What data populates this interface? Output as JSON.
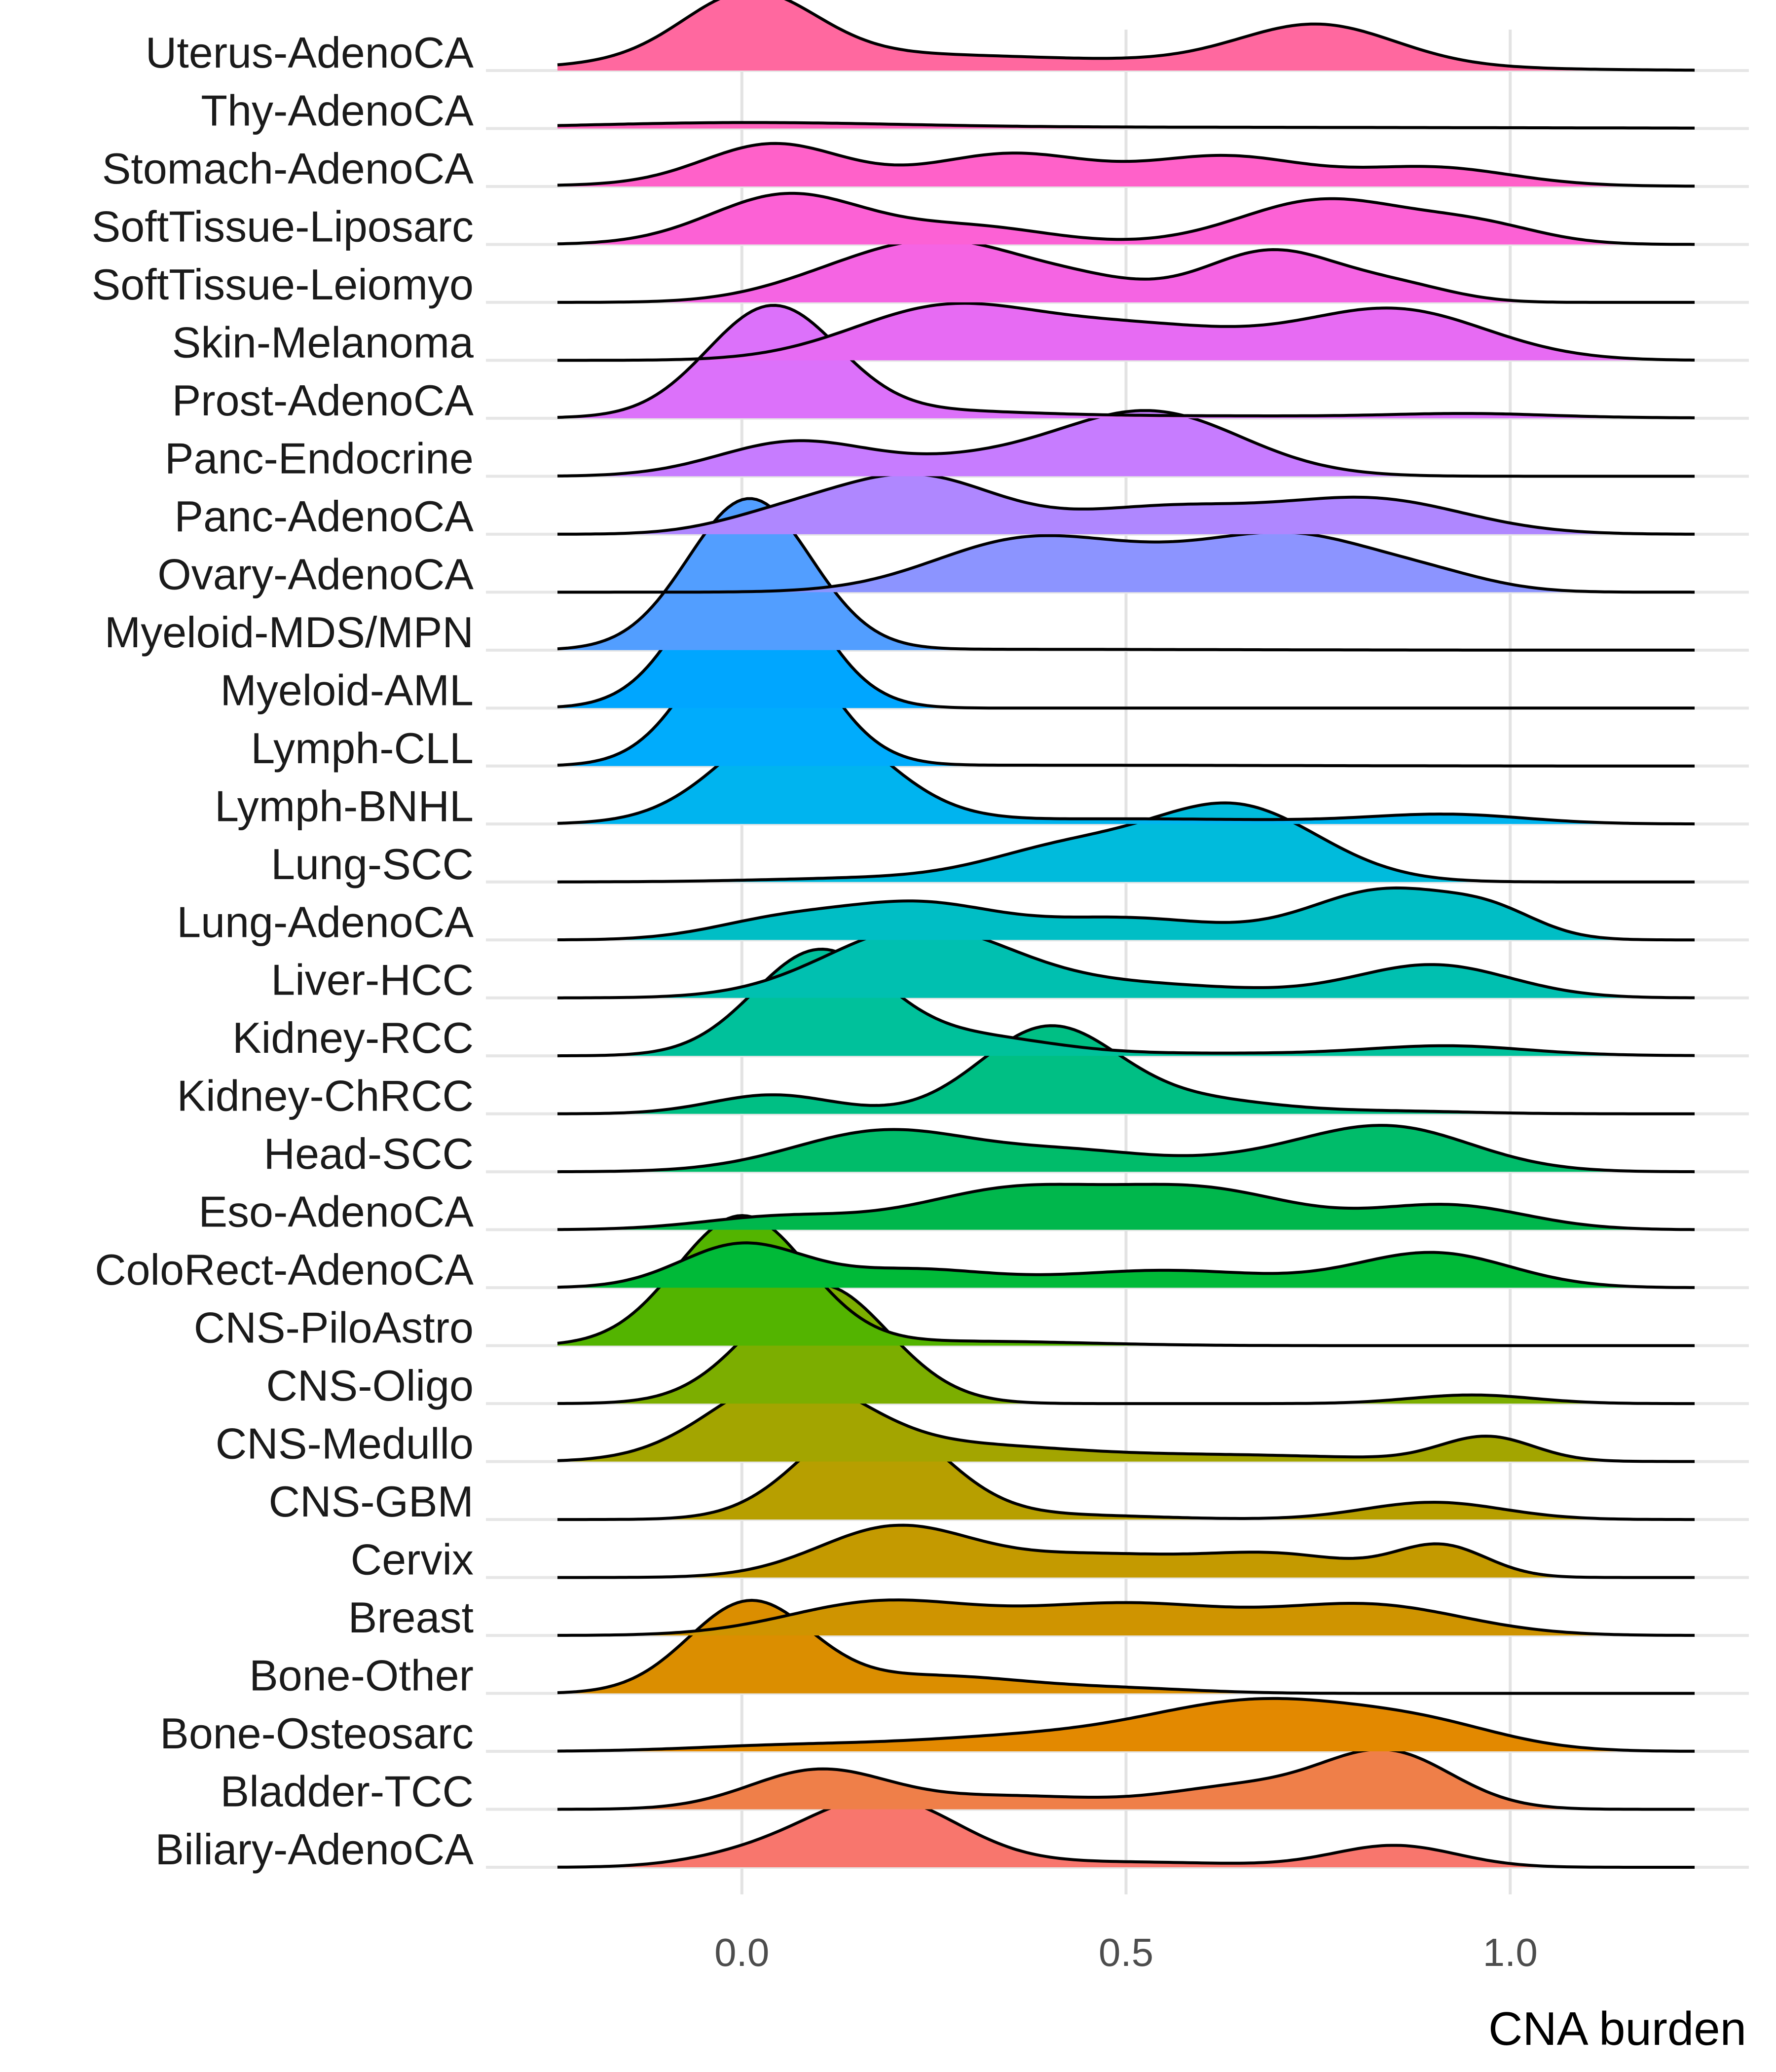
{
  "chart_data": {
    "type": "ridgeline",
    "xlabel": "CNA burden",
    "ylabel": "",
    "title": "",
    "xlim": [
      -0.24,
      1.24
    ],
    "xticks": [
      0.0,
      0.5,
      1.0
    ],
    "xtick_labels": [
      "0.0",
      "0.5",
      "1.0"
    ],
    "grid": true,
    "legend": "none",
    "categories": [
      {
        "name": "Uterus-AdenoCA",
        "color": "#FF689F",
        "peaks": [
          {
            "x": 0.01,
            "h": 0.75,
            "w": 0.085
          },
          {
            "x": 0.05,
            "h": 0.16,
            "w": 0.2
          },
          {
            "x": 0.3,
            "h": 0.06,
            "w": 0.15
          },
          {
            "x": 0.75,
            "h": 0.45,
            "w": 0.1
          },
          {
            "x": 0.62,
            "h": 0.1,
            "w": 0.25
          }
        ]
      },
      {
        "name": "Thy-AdenoCA",
        "color": "#FF62BC",
        "peaks": [
          {
            "x": 0.0,
            "h": 0.06,
            "w": 0.2
          },
          {
            "x": 0.5,
            "h": 0.015,
            "w": 0.5
          }
        ]
      },
      {
        "name": "Stomach-AdenoCA",
        "color": "#FF61C9",
        "peaks": [
          {
            "x": 0.04,
            "h": 0.46,
            "w": 0.09
          },
          {
            "x": 0.35,
            "h": 0.32,
            "w": 0.1
          },
          {
            "x": 0.63,
            "h": 0.3,
            "w": 0.1
          },
          {
            "x": 0.9,
            "h": 0.2,
            "w": 0.1
          },
          {
            "x": 0.4,
            "h": 0.06,
            "w": 0.35
          }
        ]
      },
      {
        "name": "SoftTissue-Liposarc",
        "color": "#FC61D5",
        "peaks": [
          {
            "x": 0.06,
            "h": 0.58,
            "w": 0.1
          },
          {
            "x": 0.3,
            "h": 0.2,
            "w": 0.1
          },
          {
            "x": 0.76,
            "h": 0.52,
            "w": 0.11
          },
          {
            "x": 0.96,
            "h": 0.2,
            "w": 0.08
          }
        ]
      },
      {
        "name": "SoftTissue-Leiomyo",
        "color": "#F564E3",
        "peaks": [
          {
            "x": 0.14,
            "h": 0.3,
            "w": 0.1
          },
          {
            "x": 0.28,
            "h": 0.58,
            "w": 0.1
          },
          {
            "x": 0.45,
            "h": 0.2,
            "w": 0.08
          },
          {
            "x": 0.69,
            "h": 0.6,
            "w": 0.09
          },
          {
            "x": 0.86,
            "h": 0.16,
            "w": 0.07
          }
        ]
      },
      {
        "name": "Skin-Melanoma",
        "color": "#E76BF3",
        "peaks": [
          {
            "x": 0.26,
            "h": 0.58,
            "w": 0.12
          },
          {
            "x": 0.52,
            "h": 0.38,
            "w": 0.14
          },
          {
            "x": 0.85,
            "h": 0.58,
            "w": 0.12
          }
        ]
      },
      {
        "name": "Prost-AdenoCA",
        "color": "#DC71FA",
        "peaks": [
          {
            "x": 0.04,
            "h": 1.28,
            "w": 0.085
          },
          {
            "x": 0.25,
            "h": 0.06,
            "w": 0.12
          },
          {
            "x": 0.95,
            "h": 0.04,
            "w": 0.1
          },
          {
            "x": 0.5,
            "h": 0.03,
            "w": 0.4
          }
        ]
      },
      {
        "name": "Panc-Endocrine",
        "color": "#C77CFF",
        "peaks": [
          {
            "x": 0.07,
            "h": 0.4,
            "w": 0.1
          },
          {
            "x": 0.53,
            "h": 0.75,
            "w": 0.12
          },
          {
            "x": 0.3,
            "h": 0.15,
            "w": 0.1
          }
        ]
      },
      {
        "name": "Panc-AdenoCA",
        "color": "#AF87FF",
        "peaks": [
          {
            "x": 0.22,
            "h": 0.68,
            "w": 0.11
          },
          {
            "x": 0.04,
            "h": 0.15,
            "w": 0.08
          },
          {
            "x": 0.55,
            "h": 0.3,
            "w": 0.12
          },
          {
            "x": 0.82,
            "h": 0.4,
            "w": 0.12
          }
        ]
      },
      {
        "name": "Ovary-AdenoCA",
        "color": "#8C94FF",
        "peaks": [
          {
            "x": 0.37,
            "h": 0.6,
            "w": 0.12
          },
          {
            "x": 0.72,
            "h": 0.62,
            "w": 0.11
          },
          {
            "x": 0.55,
            "h": 0.2,
            "w": 0.1
          },
          {
            "x": 0.9,
            "h": 0.15,
            "w": 0.08
          }
        ]
      },
      {
        "name": "Myeloid-MDS/MPN",
        "color": "#529EFF",
        "peaks": [
          {
            "x": 0.01,
            "h": 1.75,
            "w": 0.08
          },
          {
            "x": 0.3,
            "h": 0.01,
            "w": 0.3
          }
        ]
      },
      {
        "name": "Myeloid-AML",
        "color": "#00A6FF",
        "peaks": [
          {
            "x": 0.01,
            "h": 1.9,
            "w": 0.08
          }
        ]
      },
      {
        "name": "Lymph-CLL",
        "color": "#00ACFC",
        "peaks": [
          {
            "x": 0.02,
            "h": 1.8,
            "w": 0.08
          },
          {
            "x": 0.4,
            "h": 0.01,
            "w": 0.3
          }
        ]
      },
      {
        "name": "Lymph-BNHL",
        "color": "#00B4EF",
        "peaks": [
          {
            "x": 0.08,
            "h": 1.25,
            "w": 0.1
          },
          {
            "x": 0.5,
            "h": 0.06,
            "w": 0.25
          },
          {
            "x": 0.92,
            "h": 0.1,
            "w": 0.1
          }
        ]
      },
      {
        "name": "Lung-SCC",
        "color": "#00BBDC",
        "peaks": [
          {
            "x": 0.64,
            "h": 0.88,
            "w": 0.11
          },
          {
            "x": 0.42,
            "h": 0.35,
            "w": 0.1
          },
          {
            "x": 0.2,
            "h": 0.05,
            "w": 0.15
          }
        ]
      },
      {
        "name": "Lung-AdenoCA",
        "color": "#00BEC5",
        "peaks": [
          {
            "x": 0.05,
            "h": 0.22,
            "w": 0.09
          },
          {
            "x": 0.23,
            "h": 0.4,
            "w": 0.1
          },
          {
            "x": 0.5,
            "h": 0.25,
            "w": 0.12
          },
          {
            "x": 0.84,
            "h": 0.58,
            "w": 0.1
          },
          {
            "x": 0.98,
            "h": 0.22,
            "w": 0.06
          }
        ]
      },
      {
        "name": "Liver-HCC",
        "color": "#00C0B0",
        "peaks": [
          {
            "x": 0.23,
            "h": 0.8,
            "w": 0.12
          },
          {
            "x": 0.52,
            "h": 0.15,
            "w": 0.15
          },
          {
            "x": 0.9,
            "h": 0.38,
            "w": 0.1
          }
        ]
      },
      {
        "name": "Kidney-RCC",
        "color": "#00C19B",
        "peaks": [
          {
            "x": 0.1,
            "h": 1.2,
            "w": 0.085
          },
          {
            "x": 0.3,
            "h": 0.2,
            "w": 0.1
          },
          {
            "x": 0.92,
            "h": 0.1,
            "w": 0.1
          },
          {
            "x": 0.6,
            "h": 0.03,
            "w": 0.3
          }
        ]
      },
      {
        "name": "Kidney-ChRCC",
        "color": "#00BF84",
        "peaks": [
          {
            "x": 0.4,
            "h": 1.0,
            "w": 0.09
          },
          {
            "x": 0.04,
            "h": 0.22,
            "w": 0.08
          },
          {
            "x": 0.6,
            "h": 0.15,
            "w": 0.1
          },
          {
            "x": 0.85,
            "h": 0.03,
            "w": 0.1
          }
        ]
      },
      {
        "name": "Head-SCC",
        "color": "#00BC6A",
        "peaks": [
          {
            "x": 0.19,
            "h": 0.48,
            "w": 0.12
          },
          {
            "x": 0.44,
            "h": 0.2,
            "w": 0.1
          },
          {
            "x": 0.84,
            "h": 0.52,
            "w": 0.11
          },
          {
            "x": 0.65,
            "h": 0.1,
            "w": 0.1
          }
        ]
      },
      {
        "name": "Eso-AdenoCA",
        "color": "#00B74C",
        "peaks": [
          {
            "x": 0.05,
            "h": 0.15,
            "w": 0.1
          },
          {
            "x": 0.35,
            "h": 0.45,
            "w": 0.12
          },
          {
            "x": 0.6,
            "h": 0.45,
            "w": 0.12
          },
          {
            "x": 0.92,
            "h": 0.28,
            "w": 0.1
          }
        ]
      },
      {
        "name": "ColoRect-AdenoCA",
        "color": "#00BA38",
        "peaks": [
          {
            "x": 0.0,
            "h": 0.5,
            "w": 0.08
          },
          {
            "x": 0.22,
            "h": 0.2,
            "w": 0.1
          },
          {
            "x": 0.55,
            "h": 0.2,
            "w": 0.14
          },
          {
            "x": 0.9,
            "h": 0.4,
            "w": 0.1
          }
        ]
      },
      {
        "name": "CNS-PiloAstro",
        "color": "#53B400",
        "peaks": [
          {
            "x": 0.0,
            "h": 1.5,
            "w": 0.085
          },
          {
            "x": 0.3,
            "h": 0.05,
            "w": 0.15
          }
        ]
      },
      {
        "name": "CNS-Oligo",
        "color": "#7CAE00",
        "peaks": [
          {
            "x": 0.1,
            "h": 1.38,
            "w": 0.09
          },
          {
            "x": 0.95,
            "h": 0.1,
            "w": 0.08
          }
        ]
      },
      {
        "name": "CNS-Medullo",
        "color": "#A3A500",
        "peaks": [
          {
            "x": 0.06,
            "h": 0.95,
            "w": 0.1
          },
          {
            "x": 0.3,
            "h": 0.15,
            "w": 0.12
          },
          {
            "x": 0.6,
            "h": 0.08,
            "w": 0.2
          },
          {
            "x": 0.97,
            "h": 0.28,
            "w": 0.06
          }
        ]
      },
      {
        "name": "CNS-GBM",
        "color": "#B79F00",
        "peaks": [
          {
            "x": 0.17,
            "h": 1.2,
            "w": 0.09
          },
          {
            "x": 0.42,
            "h": 0.05,
            "w": 0.12
          },
          {
            "x": 0.9,
            "h": 0.2,
            "w": 0.09
          }
        ]
      },
      {
        "name": "Cervix",
        "color": "#C49A00",
        "peaks": [
          {
            "x": 0.2,
            "h": 0.58,
            "w": 0.1
          },
          {
            "x": 0.46,
            "h": 0.25,
            "w": 0.12
          },
          {
            "x": 0.7,
            "h": 0.25,
            "w": 0.1
          },
          {
            "x": 0.91,
            "h": 0.36,
            "w": 0.06
          }
        ]
      },
      {
        "name": "Breast",
        "color": "#CF9400",
        "peaks": [
          {
            "x": 0.18,
            "h": 0.38,
            "w": 0.12
          },
          {
            "x": 0.5,
            "h": 0.36,
            "w": 0.14
          },
          {
            "x": 0.82,
            "h": 0.34,
            "w": 0.12
          }
        ]
      },
      {
        "name": "Bone-Other",
        "color": "#DB8E00",
        "peaks": [
          {
            "x": 0.01,
            "h": 1.05,
            "w": 0.08
          },
          {
            "x": 0.25,
            "h": 0.2,
            "w": 0.12
          },
          {
            "x": 0.5,
            "h": 0.05,
            "w": 0.1
          }
        ]
      },
      {
        "name": "Bone-Osteosarc",
        "color": "#E38900",
        "peaks": [
          {
            "x": 0.05,
            "h": 0.06,
            "w": 0.12
          },
          {
            "x": 0.35,
            "h": 0.15,
            "w": 0.15
          },
          {
            "x": 0.68,
            "h": 0.58,
            "w": 0.15
          },
          {
            "x": 0.9,
            "h": 0.2,
            "w": 0.1
          }
        ]
      },
      {
        "name": "Bladder-TCC",
        "color": "#EF7F49",
        "peaks": [
          {
            "x": 0.1,
            "h": 0.45,
            "w": 0.09
          },
          {
            "x": 0.35,
            "h": 0.15,
            "w": 0.12
          },
          {
            "x": 0.65,
            "h": 0.25,
            "w": 0.1
          },
          {
            "x": 0.84,
            "h": 0.65,
            "w": 0.085
          }
        ]
      },
      {
        "name": "Biliary-AdenoCA",
        "color": "#F8766D",
        "peaks": [
          {
            "x": 0.18,
            "h": 0.8,
            "w": 0.1
          },
          {
            "x": 0.0,
            "h": 0.1,
            "w": 0.08
          },
          {
            "x": 0.5,
            "h": 0.06,
            "w": 0.15
          },
          {
            "x": 0.85,
            "h": 0.25,
            "w": 0.08
          }
        ]
      }
    ]
  }
}
